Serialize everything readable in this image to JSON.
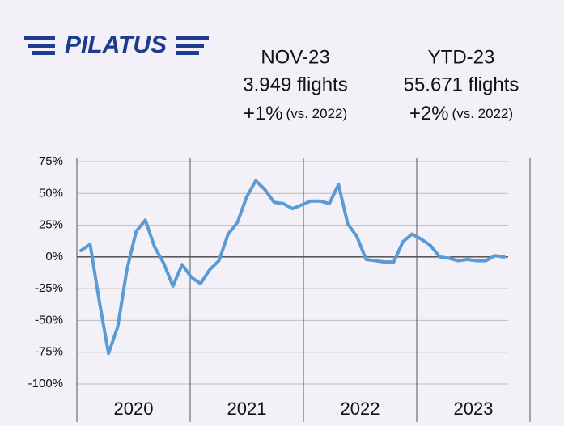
{
  "header": {
    "logo": "PILATUS",
    "month": {
      "title": "NOV-23",
      "flights": "3.949 flights",
      "change": "+1%",
      "note": "(vs. 2022)"
    },
    "ytd": {
      "title": "YTD-23",
      "flights": "55.671 flights",
      "change": "+2%",
      "note": "(vs. 2022)"
    }
  },
  "chart_data": {
    "type": "line",
    "x_labels": [
      "2020",
      "2021",
      "2022",
      "2023"
    ],
    "series": [
      {
        "name": null,
        "color": "#5b9bd5",
        "values": [
          5,
          10,
          -35,
          -76,
          -55,
          -10,
          20,
          29,
          8,
          -5,
          -23,
          -6,
          -16,
          -21,
          -10,
          -3,
          18,
          27,
          47,
          60,
          53,
          43,
          42,
          38,
          41,
          44,
          44,
          42,
          57,
          26,
          16,
          -2,
          -3,
          -4,
          -4,
          12,
          18,
          14,
          9,
          0,
          -1,
          -3,
          -2,
          -3,
          -3,
          1,
          0
        ]
      }
    ],
    "ylim": [
      -100,
      75
    ],
    "yticks": [
      {
        "value": -100,
        "label": "-100%"
      },
      {
        "value": -75,
        "label": "-75%"
      },
      {
        "value": -50,
        "label": "-50%"
      },
      {
        "value": -25,
        "label": "-25%"
      },
      {
        "value": 0,
        "label": "0%"
      },
      {
        "value": 25,
        "label": "25%"
      },
      {
        "value": 50,
        "label": "50%"
      },
      {
        "value": 75,
        "label": "75%"
      }
    ],
    "grid": true
  }
}
